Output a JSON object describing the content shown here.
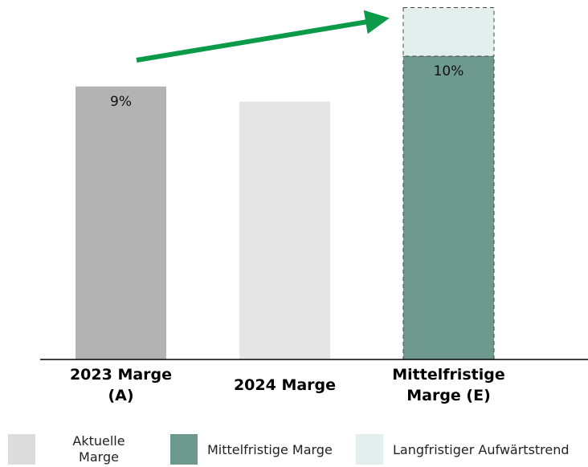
{
  "chart_data": {
    "type": "bar",
    "stacked": true,
    "categories": [
      "2023 Marge (A)",
      "2024 Marge",
      "Mittelfristige Marge (E)"
    ],
    "series": [
      {
        "name": "Aktuelle Marge",
        "color": "#dcdcdc",
        "colors": [
          "#b3b3b3",
          "#e5e5e5",
          null
        ],
        "values": [
          9,
          8.5,
          null
        ],
        "value_labels": [
          "9%",
          null,
          null
        ]
      },
      {
        "name": "Mittelfristige Marge",
        "color": "#6e998f",
        "values": [
          null,
          null,
          10
        ],
        "value_labels": [
          null,
          null,
          "10%"
        ]
      },
      {
        "name": "Langfristiger Aufwärtstrend",
        "color": "#e3efec",
        "dashed": true,
        "values": [
          null,
          null,
          1.6
        ]
      }
    ],
    "ylim": [
      0,
      11.6
    ]
  }
}
